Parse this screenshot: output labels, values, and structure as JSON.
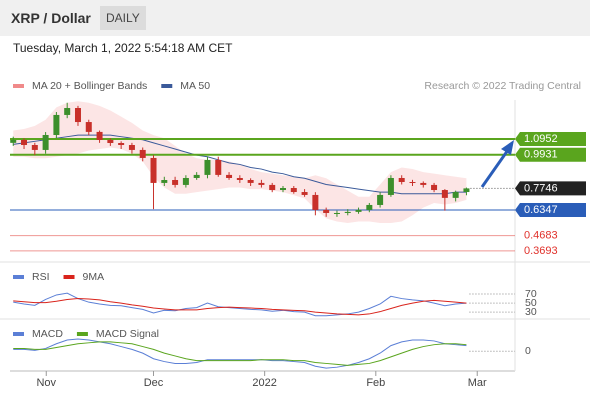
{
  "header": {
    "title": "XRP / Dollar",
    "timeframe": "DAILY",
    "timestamp": "Tuesday, March 1, 2022 5:54:18 AM CET",
    "source": "Research © 2022 Trading Central"
  },
  "chart_data": [
    {
      "type": "candlestick",
      "xlim": [
        -0.3,
        46.5
      ],
      "ylim": [
        0.297,
        1.348
      ],
      "up_color": "#3c8f2c",
      "down_color": "#c8302a",
      "open": [
        1.07,
        1.089,
        1.056,
        1.024,
        1.121,
        1.251,
        1.296,
        1.205,
        1.141,
        1.089,
        1.069,
        1.056,
        1.024,
        0.972,
        0.81,
        0.829,
        0.797,
        0.842,
        0.862,
        0.959,
        0.862,
        0.842,
        0.829,
        0.81,
        0.797,
        0.764,
        0.777,
        0.751,
        0.732,
        0.635,
        0.615,
        0.615,
        0.622,
        0.635,
        0.667,
        0.732,
        0.842,
        0.816,
        0.81,
        0.797,
        0.764,
        0.713,
        0.751
      ],
      "high": [
        1.11,
        1.1,
        1.07,
        1.14,
        1.27,
        1.33,
        1.31,
        1.22,
        1.15,
        1.1,
        1.08,
        1.07,
        1.04,
        0.99,
        0.85,
        0.85,
        0.86,
        0.88,
        0.98,
        0.98,
        0.88,
        0.86,
        0.84,
        0.83,
        0.81,
        0.79,
        0.79,
        0.77,
        0.75,
        0.65,
        0.63,
        0.64,
        0.65,
        0.68,
        0.75,
        0.86,
        0.86,
        0.83,
        0.82,
        0.81,
        0.77,
        0.76,
        0.78
      ],
      "low": [
        1.05,
        1.03,
        0.99,
        1.0,
        1.1,
        1.23,
        1.18,
        1.12,
        1.07,
        1.05,
        1.03,
        1.0,
        0.95,
        0.64,
        0.79,
        0.78,
        0.78,
        0.83,
        0.84,
        0.85,
        0.83,
        0.81,
        0.79,
        0.78,
        0.75,
        0.75,
        0.74,
        0.72,
        0.6,
        0.59,
        0.59,
        0.6,
        0.61,
        0.62,
        0.65,
        0.72,
        0.8,
        0.79,
        0.78,
        0.75,
        0.63,
        0.69,
        0.73
      ],
      "close": [
        1.089,
        1.056,
        1.024,
        1.121,
        1.251,
        1.296,
        1.205,
        1.141,
        1.089,
        1.069,
        1.056,
        1.024,
        0.972,
        0.81,
        0.829,
        0.797,
        0.842,
        0.862,
        0.959,
        0.862,
        0.842,
        0.829,
        0.81,
        0.797,
        0.764,
        0.777,
        0.751,
        0.732,
        0.635,
        0.615,
        0.615,
        0.622,
        0.635,
        0.667,
        0.732,
        0.842,
        0.816,
        0.81,
        0.797,
        0.764,
        0.713,
        0.751,
        0.7746
      ],
      "bands": {
        "name": "MA 20 + Bollinger Bands",
        "color": "#f08a8a",
        "upper": [
          1.15,
          1.16,
          1.18,
          1.22,
          1.3,
          1.33,
          1.34,
          1.33,
          1.31,
          1.28,
          1.24,
          1.2,
          1.15,
          1.12,
          1.1,
          1.05,
          1.0,
          0.97,
          0.96,
          0.96,
          0.95,
          0.93,
          0.9,
          0.88,
          0.87,
          0.86,
          0.85,
          0.84,
          0.86,
          0.84,
          0.8,
          0.76,
          0.72,
          0.72,
          0.8,
          0.88,
          0.91,
          0.9,
          0.88,
          0.87,
          0.86,
          0.85,
          0.84
        ],
        "lower": [
          0.98,
          0.98,
          0.97,
          0.97,
          0.98,
          0.99,
          1.0,
          1.02,
          1.03,
          1.04,
          1.03,
          1.0,
          0.95,
          0.85,
          0.78,
          0.74,
          0.74,
          0.75,
          0.76,
          0.77,
          0.78,
          0.78,
          0.77,
          0.77,
          0.76,
          0.75,
          0.73,
          0.71,
          0.64,
          0.58,
          0.56,
          0.55,
          0.56,
          0.56,
          0.55,
          0.55,
          0.56,
          0.6,
          0.65,
          0.68,
          0.67,
          0.68,
          0.7
        ]
      },
      "series": [
        {
          "name": "MA 50",
          "color": "#3b5a9a",
          "values": [
            1.06,
            1.07,
            1.08,
            1.09,
            1.1,
            1.11,
            1.12,
            1.12,
            1.12,
            1.12,
            1.11,
            1.1,
            1.09,
            1.07,
            1.05,
            1.03,
            1.01,
            0.99,
            0.98,
            0.96,
            0.94,
            0.93,
            0.91,
            0.9,
            0.88,
            0.87,
            0.85,
            0.84,
            0.82,
            0.8,
            0.79,
            0.78,
            0.77,
            0.76,
            0.75,
            0.75,
            0.74,
            0.74,
            0.74,
            0.74,
            0.74,
            0.75,
            0.75
          ]
        }
      ],
      "levels": [
        1.0952,
        0.9931,
        0.7746,
        0.6347,
        0.4683,
        0.3693
      ],
      "level_colors": [
        "#5aa51e",
        "#5aa51e",
        "#222222",
        "#2a5db8",
        "#e0302a",
        "#e0302a"
      ],
      "level_styles": [
        "box",
        "box",
        "last",
        "box",
        "text",
        "text"
      ]
    },
    {
      "type": "line",
      "xlim": [
        -0.3,
        46.5
      ],
      "ylim": [
        17,
        90
      ],
      "yticks": [
        70,
        50,
        30
      ],
      "series": [
        {
          "name": "RSI",
          "color": "#5b7fd6",
          "values": [
            52,
            48,
            45,
            58,
            68,
            72,
            60,
            52,
            48,
            45,
            44,
            40,
            36,
            28,
            34,
            33,
            38,
            40,
            50,
            42,
            40,
            38,
            36,
            35,
            32,
            34,
            31,
            30,
            22,
            22,
            24,
            26,
            30,
            38,
            48,
            65,
            60,
            57,
            55,
            50,
            44,
            48,
            50
          ]
        },
        {
          "name": "9MA",
          "color": "#d9241c",
          "values": [
            55,
            53,
            51,
            51,
            54,
            58,
            60,
            59,
            57,
            53,
            50,
            46,
            43,
            39,
            37,
            35,
            35,
            35,
            38,
            40,
            41,
            40,
            39,
            38,
            36,
            35,
            34,
            33,
            30,
            28,
            26,
            25,
            24,
            26,
            31,
            38,
            45,
            50,
            54,
            56,
            54,
            52,
            50
          ]
        }
      ]
    },
    {
      "type": "line",
      "xlim": [
        -0.3,
        46.5
      ],
      "ylim": [
        -0.02,
        0.028
      ],
      "yticks": [
        0
      ],
      "xticks": [
        {
          "value": 3.06,
          "label": "Nov"
        },
        {
          "value": 13,
          "label": "Dec"
        },
        {
          "value": 23.3,
          "label": "2022"
        },
        {
          "value": 33.6,
          "label": "Feb"
        },
        {
          "value": 43,
          "label": "Mar"
        }
      ],
      "series": [
        {
          "name": "MACD",
          "color": "#5b7fd6",
          "values": [
            0.002,
            0.002,
            0.001,
            0.003,
            0.008,
            0.012,
            0.013,
            0.012,
            0.01,
            0.008,
            0.005,
            0.002,
            -0.002,
            -0.008,
            -0.011,
            -0.013,
            -0.013,
            -0.012,
            -0.009,
            -0.009,
            -0.009,
            -0.009,
            -0.009,
            -0.009,
            -0.01,
            -0.01,
            -0.011,
            -0.012,
            -0.016,
            -0.018,
            -0.017,
            -0.015,
            -0.012,
            -0.008,
            -0.002,
            0.006,
            0.01,
            0.012,
            0.012,
            0.011,
            0.008,
            0.007,
            0.006
          ]
        },
        {
          "name": "MACD Signal",
          "color": "#5aa51e",
          "values": [
            0.003,
            0.003,
            0.002,
            0.002,
            0.004,
            0.006,
            0.008,
            0.009,
            0.01,
            0.01,
            0.009,
            0.008,
            0.005,
            0.002,
            -0.002,
            -0.005,
            -0.008,
            -0.01,
            -0.01,
            -0.01,
            -0.01,
            -0.01,
            -0.01,
            -0.009,
            -0.009,
            -0.009,
            -0.01,
            -0.01,
            -0.012,
            -0.013,
            -0.014,
            -0.015,
            -0.014,
            -0.013,
            -0.01,
            -0.006,
            -0.002,
            0.002,
            0.005,
            0.007,
            0.008,
            0.008,
            0.007
          ]
        }
      ]
    }
  ]
}
